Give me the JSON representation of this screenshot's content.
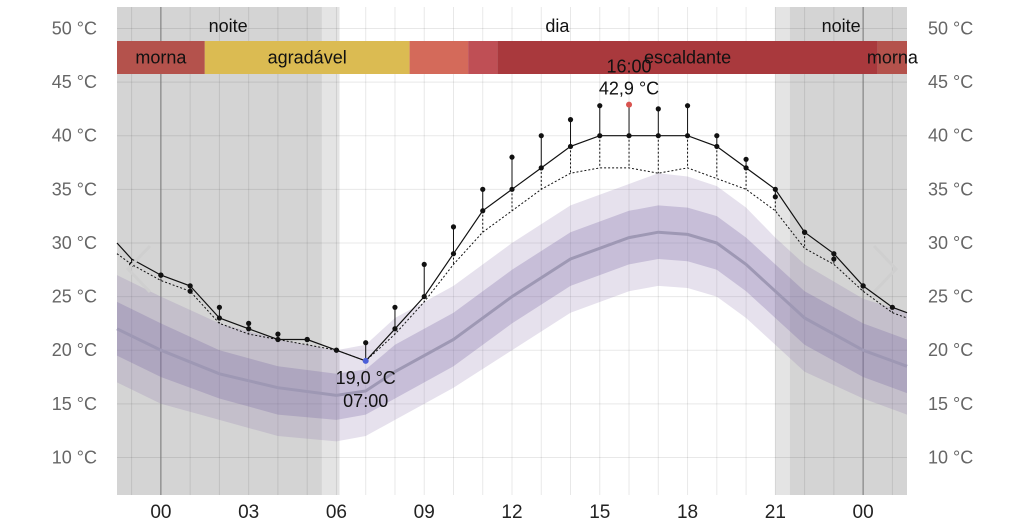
{
  "chart_data": {
    "type": "line",
    "title": "",
    "x_tick_labels": [
      "00",
      "03",
      "06",
      "09",
      "12",
      "15",
      "18",
      "21",
      "00"
    ],
    "x_tick_hours": [
      0,
      3,
      6,
      9,
      12,
      15,
      18,
      21,
      24
    ],
    "x_range_hours": [
      -1.5,
      25.5
    ],
    "y_unit": "°C",
    "y_ticks": [
      10,
      15,
      20,
      25,
      30,
      35,
      40,
      45,
      50
    ],
    "y_tick_labels": [
      "10 °C",
      "15 °C",
      "20 °C",
      "25 °C",
      "30 °C",
      "35 °C",
      "40 °C",
      "45 °C",
      "50 °C"
    ],
    "ylim": [
      6.5,
      52
    ],
    "grid": true,
    "day_night": [
      {
        "label": "noite",
        "start": -1.5,
        "end": 6.1,
        "shade": "night"
      },
      {
        "label": "dia",
        "start": 6.1,
        "end": 21.0,
        "shade": "day"
      },
      {
        "label": "noite",
        "start": 21.0,
        "end": 25.5,
        "shade": "night"
      }
    ],
    "twilight": [
      {
        "start": 5.5,
        "end": 6.1
      },
      {
        "start": 21.0,
        "end": 21.5
      }
    ],
    "feel_bands": [
      {
        "label": "morna",
        "start": -1.5,
        "end": 1.5,
        "color": "#b4524c"
      },
      {
        "label": "agradável",
        "start": 1.5,
        "end": 8.5,
        "color": "#dbbb52"
      },
      {
        "label": "",
        "start": 8.5,
        "end": 10.5,
        "color": "#d46a5a"
      },
      {
        "label": "",
        "start": 10.5,
        "end": 11.5,
        "color": "#bf4f55"
      },
      {
        "label": "escaldante",
        "start": 11.5,
        "end": 24.5,
        "color": "#a9393d"
      },
      {
        "label": "morna",
        "start": 24.5,
        "end": 25.5,
        "color": "#b4524c"
      }
    ],
    "series": [
      {
        "name": "",
        "role": "forecast-temperature",
        "color": "#111111",
        "x": [
          -1.5,
          -1,
          0,
          1,
          2,
          3,
          4,
          5,
          6,
          7,
          8,
          9,
          10,
          11,
          12,
          13,
          14,
          15,
          16,
          17,
          18,
          19,
          20,
          21,
          22,
          23,
          24,
          25,
          25.5
        ],
        "values": [
          30,
          28.5,
          27,
          26,
          23,
          22,
          21,
          21,
          20,
          19,
          22,
          25,
          29,
          33,
          35,
          37,
          39,
          40,
          40,
          40,
          40,
          39,
          37,
          35,
          31,
          29,
          26,
          24,
          23.5
        ]
      },
      {
        "name": "",
        "role": "dew-point-dotted",
        "color": "#111111",
        "x": [
          -1.5,
          -1,
          0,
          1,
          2,
          3,
          4,
          5,
          6,
          7,
          8,
          9,
          10,
          11,
          12,
          13,
          14,
          15,
          16,
          17,
          18,
          19,
          20,
          21,
          22,
          23,
          24,
          25,
          25.5
        ],
        "values": [
          29,
          28,
          26.5,
          25.5,
          22.5,
          21.5,
          21,
          20.5,
          20,
          19,
          21.5,
          24.5,
          28,
          31,
          33,
          35,
          36.5,
          37,
          37,
          36.5,
          37,
          36,
          35,
          33,
          29.5,
          28,
          25.5,
          23.5,
          23
        ]
      },
      {
        "name": "",
        "role": "feels-like-stems",
        "color": "#111111",
        "x": [
          -1,
          0,
          1,
          2,
          3,
          4,
          5,
          6,
          7,
          8,
          9,
          10,
          11,
          12,
          13,
          14,
          15,
          16,
          17,
          18,
          19,
          20,
          21,
          22,
          23,
          24,
          25
        ],
        "values": [
          28,
          27,
          25.5,
          24,
          22.5,
          21.5,
          21,
          20,
          20.7,
          24,
          28,
          31.5,
          35,
          38,
          40,
          41.5,
          42.8,
          42.9,
          42.5,
          42.8,
          40,
          37.8,
          34.3,
          31,
          28.5,
          26,
          24
        ]
      },
      {
        "name": "",
        "role": "historical-average",
        "color": "#9e98b4",
        "x": [
          -1.5,
          0,
          2,
          4,
          6,
          7,
          8,
          10,
          12,
          14,
          16,
          17,
          18,
          19,
          20,
          21,
          22,
          24,
          25.5
        ],
        "values": [
          22,
          20,
          17.8,
          16.5,
          15.8,
          16.2,
          18,
          21,
          25,
          28.5,
          30.5,
          31,
          30.8,
          30,
          28,
          25.5,
          23,
          20,
          18.5
        ]
      }
    ],
    "historical_bands": {
      "x": [
        -1.5,
        0,
        2,
        4,
        6,
        7,
        8,
        10,
        12,
        14,
        16,
        17,
        18,
        19,
        20,
        21,
        22,
        24,
        25.5
      ],
      "inner_low": [
        19.5,
        17.5,
        15.5,
        14,
        13.5,
        14,
        15.5,
        18.5,
        22.5,
        26,
        28,
        28.5,
        28.3,
        27.5,
        25.5,
        23,
        20.5,
        17.5,
        16
      ],
      "inner_high": [
        24.5,
        22.5,
        20,
        18.5,
        17.8,
        18.2,
        20.5,
        23.5,
        27.5,
        31,
        33,
        33.5,
        33.3,
        32.5,
        30.5,
        28,
        25.5,
        22.5,
        21
      ],
      "outer_low": [
        17,
        15,
        13.5,
        12,
        11.5,
        12,
        13.5,
        16.5,
        20,
        23.5,
        25.5,
        26,
        25.8,
        25,
        23,
        20.5,
        18,
        15.5,
        14
      ],
      "outer_high": [
        27,
        25,
        22.5,
        21,
        20,
        20.5,
        23,
        26,
        30,
        33.5,
        35.5,
        36.5,
        36.2,
        35.3,
        33.3,
        30.5,
        28,
        24.8,
        23.5
      ]
    },
    "annotations": [
      {
        "name": "max",
        "x": 16,
        "y": 42.9,
        "time": "16:00",
        "value": "42,9 °C",
        "color": "#d9534f"
      },
      {
        "name": "min",
        "x": 7,
        "y": 19.0,
        "time": "07:00",
        "value": "19,0 °C",
        "color": "#4b5fd8"
      }
    ]
  }
}
